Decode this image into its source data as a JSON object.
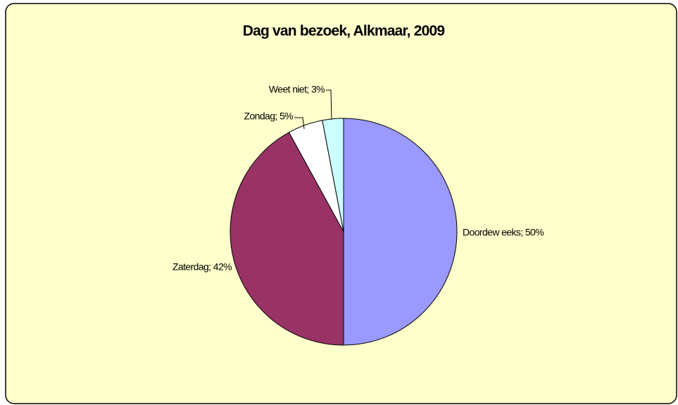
{
  "chart_data": {
    "type": "pie",
    "title": "Dag van bezoek, Alkmaar, 2009",
    "categories": [
      "Doordeweeks",
      "Zaterdag",
      "Zondag",
      "Weet niet"
    ],
    "values": [
      50,
      42,
      5,
      3
    ],
    "value_labels": [
      "Doordew eeks; 50%",
      "Zaterdag; 42%",
      "Zondag; 5%",
      "Weet niet; 3%"
    ],
    "colors": [
      "#9999ff",
      "#993366",
      "#ffffff",
      "#ccffff"
    ]
  }
}
